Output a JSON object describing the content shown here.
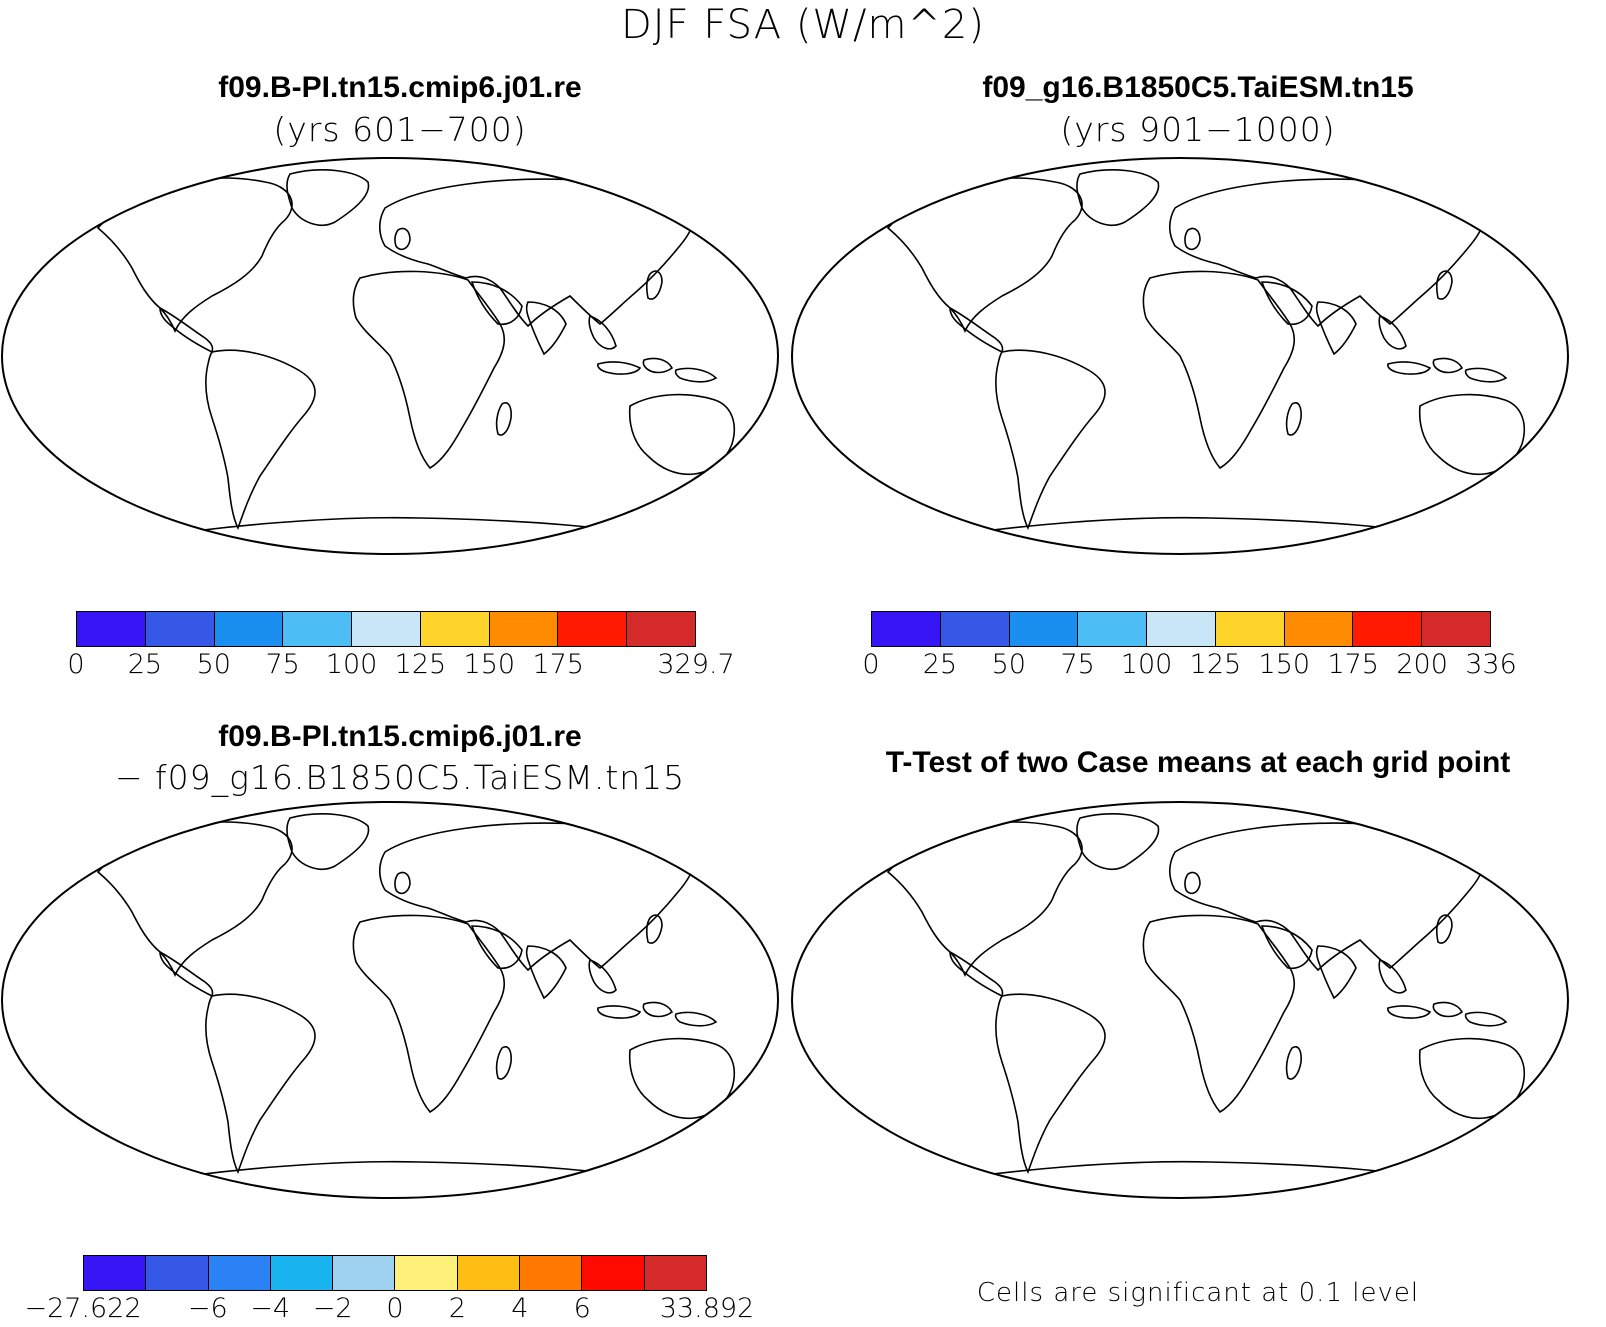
{
  "figure": {
    "title": "DJF FSA (W/m^2)"
  },
  "panels": {
    "case1": {
      "title": "f09.B-PI.tn15.cmip6.j01.re",
      "subtitle": "(yrs 601−700)"
    },
    "case2": {
      "title": "f09_g16.B1850C5.TaiESM.tn15",
      "subtitle": "(yrs 901−1000)"
    },
    "diff": {
      "title": "f09.B-PI.tn15.cmip6.j01.re",
      "subtitle": "− f09_g16.B1850C5.TaiESM.tn15"
    },
    "ttest": {
      "title": "T-Test of two Case means at each grid point",
      "note": "Cells are significant at 0.1 level"
    }
  },
  "colorbars": {
    "case1": {
      "colors": [
        "#3716f5",
        "#3658e6",
        "#1a8ff0",
        "#4dbdf5",
        "#c9e6f7",
        "#ffd42a",
        "#ff8c00",
        "#ff1a00",
        "#d42a2a"
      ],
      "labels": [
        "0",
        "25",
        "50",
        "75",
        "100",
        "125",
        "150",
        "175",
        "",
        "329.7"
      ]
    },
    "case2": {
      "colors": [
        "#3716f5",
        "#3658e6",
        "#1a8ff0",
        "#4dbdf5",
        "#c9e6f7",
        "#ffd42a",
        "#ff8c00",
        "#ff1a00",
        "#d42a2a"
      ],
      "labels": [
        "0",
        "25",
        "50",
        "75",
        "100",
        "125",
        "150",
        "175",
        "200",
        "336"
      ]
    },
    "diff": {
      "colors": [
        "#3716f5",
        "#3658e6",
        "#2a82f5",
        "#1ab4f0",
        "#9fd2f0",
        "#fff07a",
        "#ffbe14",
        "#ff7800",
        "#ff0a00",
        "#d42a2a"
      ],
      "labels": [
        "−27.622",
        "",
        "−6",
        "−4",
        "−2",
        "0",
        "2",
        "4",
        "6",
        "",
        "33.892"
      ]
    }
  },
  "map_colors": {
    "ocean": "#ffffff",
    "coast": "#000000",
    "significant": "#ff0000"
  }
}
